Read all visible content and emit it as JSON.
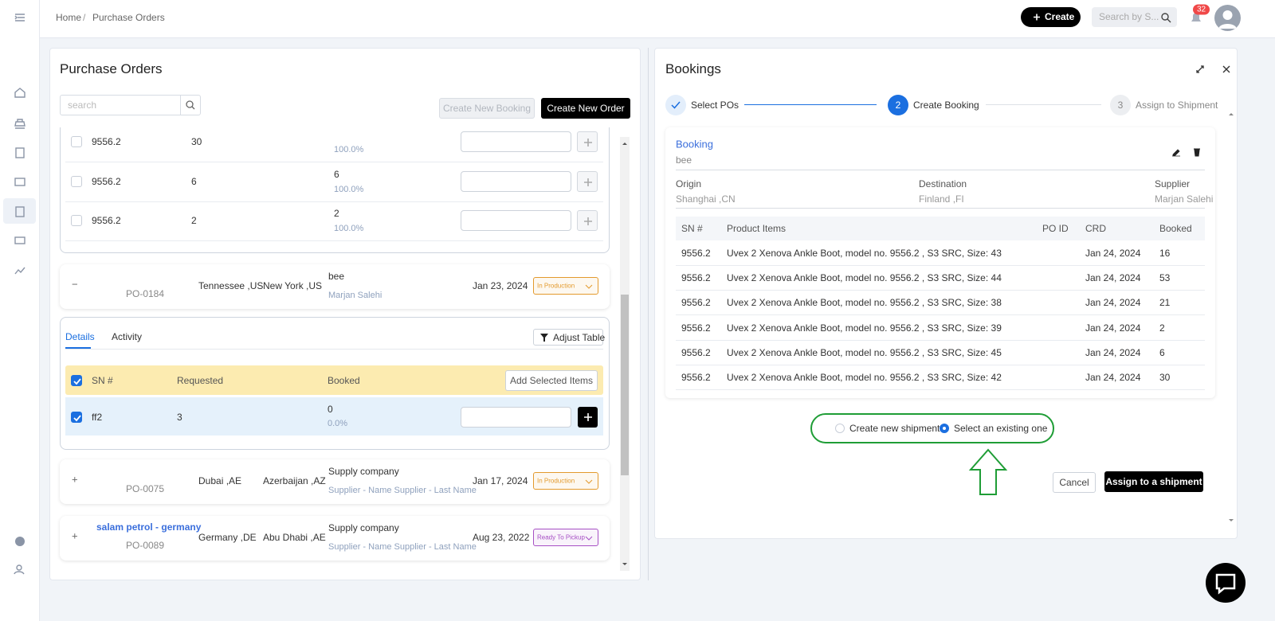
{
  "topbar": {
    "breadcrumb": [
      "Home",
      "Purchase Orders"
    ],
    "create_button": "Create",
    "search_placeholder": "Search by S...",
    "notification_count": "32"
  },
  "purchase_orders": {
    "title": "Purchase Orders",
    "search_placeholder": "search",
    "buttons": {
      "create_booking": "Create New Booking",
      "create_order": "Create New Order"
    },
    "expanded_items": [
      {
        "sn": "9556.2",
        "requested": "30",
        "percent": "100.0%"
      },
      {
        "sn": "9556.2",
        "requested": "6",
        "booked": "6",
        "percent": "100.0%"
      },
      {
        "sn": "9556.2",
        "requested": "2",
        "booked": "2",
        "percent": "100.0%"
      }
    ],
    "orders": [
      {
        "po": "PO-0184",
        "origin": "Tennessee ,US",
        "destination": "New York ,US",
        "company": "bee",
        "supplier": "Marjan Salehi",
        "date": "Jan 23, 2024",
        "status": "In Production",
        "status_color": "#e39a2d"
      },
      {
        "po": "PO-0075",
        "origin": "Dubai ,AE",
        "destination": "Azerbaijan ,AZ",
        "company": "Supply company",
        "supplier": "Supplier - Name Supplier - Last Name",
        "date": "Jan 17, 2024",
        "status": "In Production",
        "status_color": "#e39a2d"
      },
      {
        "name": "salam petrol - germany",
        "po": "PO-0089",
        "origin": "Germany ,DE",
        "destination": "Abu Dhabi ,AE",
        "company": "Supply company",
        "supplier": "Supplier - Name Supplier - Last Name",
        "date": "Aug 23, 2022",
        "status": "Ready To Pickup",
        "status_color": "#a64fc4"
      }
    ],
    "details": {
      "tabs": [
        "Details",
        "Activity"
      ],
      "adjust_button": "Adjust Table",
      "columns": [
        "SN #",
        "Requested",
        "Booked"
      ],
      "add_button": "Add Selected Items",
      "rows": [
        {
          "sn": "ff2",
          "requested": "3",
          "booked": "0",
          "percent": "0.0%"
        }
      ]
    }
  },
  "bookings": {
    "title": "Bookings",
    "steps": [
      {
        "label": "Select POs"
      },
      {
        "number": "2",
        "label": "Create Booking"
      },
      {
        "number": "3",
        "label": "Assign to Shipment"
      }
    ],
    "booking": {
      "title": "Booking",
      "subtitle": "bee",
      "fields": [
        {
          "label": "Origin",
          "value": "Shanghai ,CN"
        },
        {
          "label": "Destination",
          "value": "Finland ,FI"
        },
        {
          "label": "Supplier",
          "value": "Marjan Salehi"
        }
      ],
      "columns": [
        "SN #",
        "Product Items",
        "PO ID",
        "CRD",
        "Booked"
      ],
      "rows": [
        {
          "sn": "9556.2",
          "item": "Uvex 2 Xenova Ankle Boot, model no. 9556.2 , S3 SRC, Size: 43",
          "crd": "Jan 24, 2024",
          "booked": "16"
        },
        {
          "sn": "9556.2",
          "item": "Uvex 2 Xenova Ankle Boot, model no. 9556.2 , S3 SRC, Size: 44",
          "crd": "Jan 24, 2024",
          "booked": "53"
        },
        {
          "sn": "9556.2",
          "item": "Uvex 2 Xenova Ankle Boot, model no. 9556.2 , S3 SRC, Size: 38",
          "crd": "Jan 24, 2024",
          "booked": "21"
        },
        {
          "sn": "9556.2",
          "item": "Uvex 2 Xenova Ankle Boot, model no. 9556.2 , S3 SRC, Size: 39",
          "crd": "Jan 24, 2024",
          "booked": "2"
        },
        {
          "sn": "9556.2",
          "item": "Uvex 2 Xenova Ankle Boot, model no. 9556.2 , S3 SRC, Size: 45",
          "crd": "Jan 24, 2024",
          "booked": "6"
        },
        {
          "sn": "9556.2",
          "item": "Uvex 2 Xenova Ankle Boot, model no. 9556.2 , S3 SRC, Size: 42",
          "crd": "Jan 24, 2024",
          "booked": "30"
        }
      ]
    },
    "shipment_options": [
      {
        "label": "Create new shipment",
        "selected": false
      },
      {
        "label": "Select an existing one",
        "selected": true
      }
    ],
    "actions": {
      "cancel": "Cancel",
      "assign": "Assign to a shipment"
    }
  }
}
